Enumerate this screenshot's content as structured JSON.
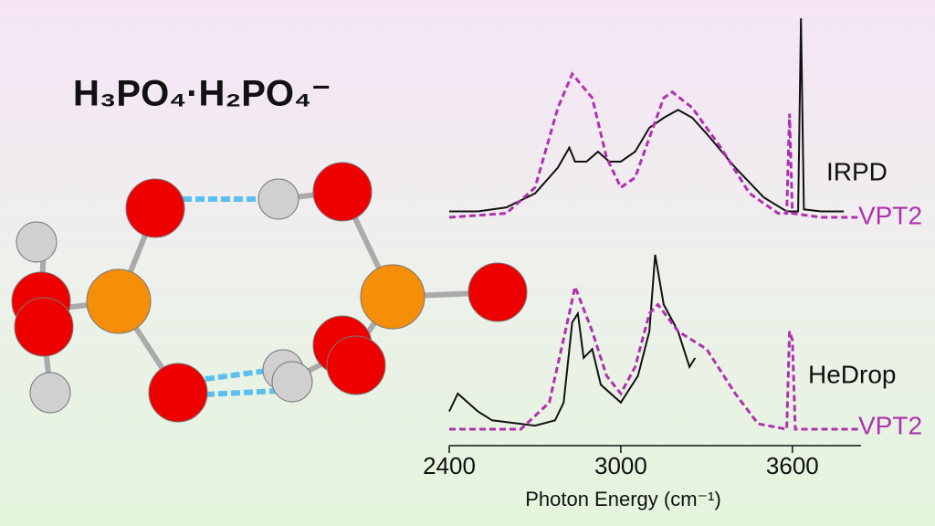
{
  "title": "H₃PO₄·H₂PO₄⁻",
  "chart_data": [
    {
      "type": "line",
      "xlim": [
        2400,
        3840
      ],
      "ylim": [
        0,
        1
      ],
      "series": [
        {
          "name": "IRPD",
          "color": "#111111",
          "dash": false,
          "x": [
            2400,
            2500,
            2600,
            2700,
            2780,
            2820,
            2840,
            2880,
            2920,
            2960,
            3000,
            3050,
            3100,
            3150,
            3200,
            3250,
            3300,
            3400,
            3500,
            3580,
            3620,
            3630,
            3640,
            3700,
            3780
          ],
          "values": [
            0.03,
            0.03,
            0.05,
            0.12,
            0.25,
            0.35,
            0.28,
            0.28,
            0.33,
            0.28,
            0.28,
            0.33,
            0.45,
            0.5,
            0.54,
            0.5,
            0.42,
            0.25,
            0.1,
            0.03,
            0.03,
            1.0,
            0.04,
            0.03,
            0.03
          ]
        },
        {
          "name": "VPT2",
          "color": "#b030b0",
          "dash": true,
          "x": [
            2400,
            2600,
            2700,
            2780,
            2830,
            2900,
            2950,
            3000,
            3050,
            3100,
            3150,
            3180,
            3250,
            3350,
            3450,
            3550,
            3580,
            3590,
            3600,
            3700,
            3840
          ],
          "values": [
            0,
            0.02,
            0.15,
            0.55,
            0.72,
            0.6,
            0.3,
            0.15,
            0.2,
            0.4,
            0.6,
            0.63,
            0.55,
            0.35,
            0.12,
            0.02,
            0.02,
            0.52,
            0.02,
            0,
            0
          ]
        }
      ]
    },
    {
      "type": "line",
      "xlim": [
        2400,
        3840
      ],
      "ylim": [
        0,
        1
      ],
      "xticks": [
        2400,
        3000,
        3600
      ],
      "xlabel": "Photon Energy (cm⁻¹)",
      "series": [
        {
          "name": "HeDrop",
          "color": "#111111",
          "dash": false,
          "x": [
            2400,
            2430,
            2500,
            2550,
            2700,
            2770,
            2800,
            2830,
            2850,
            2870,
            2900,
            2930,
            3000,
            3060,
            3100,
            3120,
            3150,
            3200,
            3240,
            3260
          ],
          "values": [
            0.1,
            0.2,
            0.1,
            0.05,
            0.02,
            0.05,
            0.15,
            0.6,
            0.65,
            0.4,
            0.45,
            0.25,
            0.15,
            0.3,
            0.55,
            0.98,
            0.7,
            0.55,
            0.35,
            0.4
          ]
        },
        {
          "name": "VPT2",
          "color": "#b030b0",
          "dash": true,
          "x": [
            2400,
            2650,
            2750,
            2820,
            2840,
            2900,
            2950,
            3000,
            3050,
            3100,
            3130,
            3200,
            3300,
            3400,
            3480,
            3580,
            3590,
            3600,
            3610,
            3840
          ],
          "values": [
            0,
            0,
            0.15,
            0.65,
            0.8,
            0.55,
            0.3,
            0.2,
            0.35,
            0.65,
            0.7,
            0.55,
            0.45,
            0.2,
            0.03,
            0,
            0.55,
            0.5,
            0,
            0
          ]
        }
      ]
    }
  ]
}
